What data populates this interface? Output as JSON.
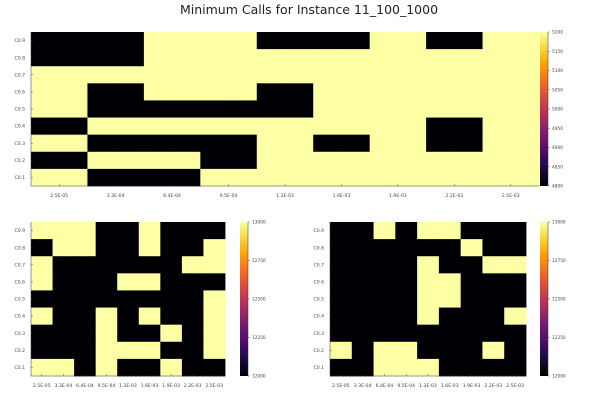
{
  "chart_data": [
    {
      "type": "heatmap",
      "title": "Minimum Calls for Instance 11_100_1000",
      "x_tick_labels": [
        "2.5E-05",
        "3.3E-04",
        "6.4E-04",
        "9.5E-04",
        "1.3E-03",
        "1.6E-03",
        "1.9E-03",
        "2.2E-03",
        "2.5E-03"
      ],
      "y_tick_labels": [
        "C0.1",
        "C0.2",
        "C0.3",
        "C0.4",
        "C0.5",
        "C0.6",
        "C0.7",
        "C0.8",
        "C0.9"
      ],
      "colorbar": {
        "min": 4800,
        "max": 5200,
        "ticks": [
          4800,
          4850,
          4900,
          4950,
          5000,
          5050,
          5100,
          5150,
          5200
        ],
        "colormap": "inferno"
      },
      "cells_top_row_first": [
        [
          4800,
          4800,
          4800,
          4800,
          5200,
          5200,
          5200,
          5200,
          4800,
          4800,
          4800,
          4800,
          5200,
          5200,
          4800,
          4800,
          5200,
          5200
        ],
        [
          4800,
          4800,
          4800,
          4800,
          5200,
          5200,
          5200,
          5200,
          5200,
          5200,
          5200,
          5200,
          5200,
          5200,
          5200,
          5200,
          5200,
          5200
        ],
        [
          5200,
          5200,
          5200,
          5200,
          5200,
          5200,
          5200,
          5200,
          5200,
          5200,
          5200,
          5200,
          5200,
          5200,
          5200,
          5200,
          5200,
          5200
        ],
        [
          5200,
          5200,
          4800,
          4800,
          5200,
          5200,
          5200,
          5200,
          4800,
          4800,
          5200,
          5200,
          5200,
          5200,
          5200,
          5200,
          5200,
          5200
        ],
        [
          5200,
          5200,
          4800,
          4800,
          4800,
          4800,
          4800,
          4800,
          4800,
          4800,
          5200,
          5200,
          5200,
          5200,
          5200,
          5200,
          5200,
          5200
        ],
        [
          4800,
          4800,
          5200,
          5200,
          5200,
          5200,
          5200,
          5200,
          5200,
          5200,
          5200,
          5200,
          5200,
          5200,
          4800,
          4800,
          5200,
          5200
        ],
        [
          5200,
          5200,
          4800,
          4800,
          4800,
          4800,
          4800,
          4800,
          5200,
          5200,
          4800,
          4800,
          5200,
          5200,
          4800,
          4800,
          5200,
          5200
        ],
        [
          4800,
          4800,
          5200,
          5200,
          5200,
          5200,
          4800,
          4800,
          5200,
          5200,
          5200,
          5200,
          5200,
          5200,
          5200,
          5200,
          5200,
          5200
        ],
        [
          5200,
          5200,
          4800,
          4800,
          4800,
          4800,
          5200,
          5200,
          5200,
          5200,
          5200,
          5200,
          5200,
          5200,
          5200,
          5200,
          5200,
          5200
        ]
      ]
    },
    {
      "type": "heatmap",
      "x_tick_labels": [
        "2.5E-05",
        "3.3E-04",
        "6.4E-04",
        "9.5E-04",
        "1.3E-03",
        "1.6E-03",
        "1.9E-03",
        "2.2E-03",
        "2.5E-03"
      ],
      "y_tick_labels": [
        "C0.1",
        "C0.2",
        "C0.3",
        "C0.4",
        "C0.5",
        "C0.6",
        "C0.7",
        "C0.8",
        "C0.9"
      ],
      "colorbar": {
        "min": 12000,
        "max": 13000,
        "ticks": [
          12000,
          12250,
          12500,
          12750,
          13000
        ],
        "colormap": "inferno"
      },
      "cells_top_row_first": [
        [
          13000,
          13000,
          13000,
          12000,
          12000,
          13000,
          12000,
          12000,
          12000
        ],
        [
          12000,
          13000,
          13000,
          12000,
          12000,
          13000,
          12000,
          12000,
          13000
        ],
        [
          13000,
          12000,
          12000,
          12000,
          12000,
          12000,
          12000,
          13000,
          13000
        ],
        [
          13000,
          12000,
          12000,
          12000,
          13000,
          13000,
          12000,
          12000,
          12000
        ],
        [
          12000,
          12000,
          12000,
          12000,
          12000,
          12000,
          12000,
          12000,
          13000
        ],
        [
          13000,
          12000,
          12000,
          13000,
          12000,
          13000,
          12000,
          12000,
          13000
        ],
        [
          12000,
          12000,
          12000,
          13000,
          12000,
          12000,
          13000,
          12000,
          13000
        ],
        [
          12000,
          12000,
          12000,
          13000,
          13000,
          13000,
          12000,
          12000,
          13000
        ],
        [
          13000,
          13000,
          12000,
          13000,
          12000,
          12000,
          13000,
          12000,
          12000
        ]
      ]
    },
    {
      "type": "heatmap",
      "x_tick_labels": [
        "2.5E-05",
        "3.3E-04",
        "6.4E-04",
        "9.5E-04",
        "1.3E-03",
        "1.6E-03",
        "1.9E-03",
        "2.2E-03",
        "2.5E-03"
      ],
      "y_tick_labels": [
        "C0.9",
        "C0.8",
        "C0.7",
        "C0.6",
        "C0.5",
        "C0.4",
        "C0.3",
        "C0.2",
        "C0.1"
      ],
      "colorbar": {
        "min": 12000,
        "max": 13000,
        "ticks": [
          12000,
          12250,
          12500,
          12750,
          13000
        ],
        "colormap": "inferno"
      },
      "cells_top_row_first": [
        [
          12000,
          12000,
          13000,
          12000,
          13000,
          13000,
          12000,
          12000,
          12000
        ],
        [
          12000,
          12000,
          12000,
          12000,
          12000,
          12000,
          13000,
          12000,
          12000
        ],
        [
          12000,
          12000,
          12000,
          12000,
          13000,
          12000,
          12000,
          13000,
          13000
        ],
        [
          12000,
          12000,
          12000,
          12000,
          13000,
          13000,
          12000,
          12000,
          12000
        ],
        [
          12000,
          12000,
          12000,
          12000,
          13000,
          13000,
          12000,
          12000,
          12000
        ],
        [
          12000,
          12000,
          12000,
          12000,
          13000,
          12000,
          12000,
          12000,
          13000
        ],
        [
          12000,
          12000,
          12000,
          12000,
          12000,
          12000,
          12000,
          12000,
          12000
        ],
        [
          13000,
          12000,
          13000,
          13000,
          12000,
          12000,
          12000,
          13000,
          12000
        ],
        [
          12000,
          12000,
          13000,
          13000,
          13000,
          12000,
          12000,
          12000,
          12000
        ]
      ]
    }
  ]
}
